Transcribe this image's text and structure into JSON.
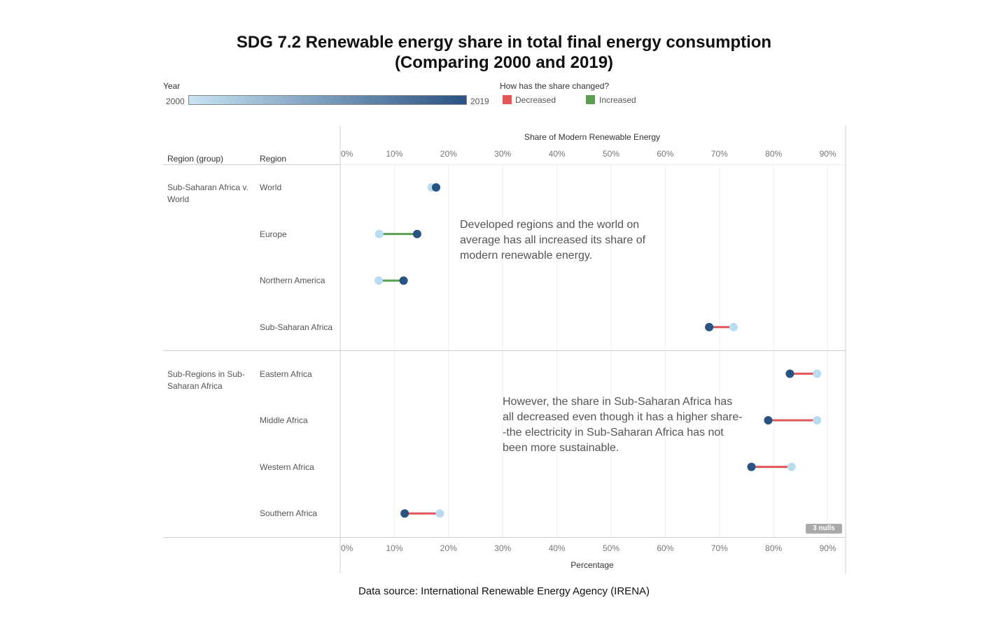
{
  "title_line1": "SDG 7.2 Renewable energy share in total final energy consumption",
  "title_line2": "(Comparing 2000 and 2019)",
  "legend": {
    "year_title": "Year",
    "year_start": "2000",
    "year_end": "2019",
    "change_title": "How has the share changed?",
    "decreased": "Decreased",
    "increased": "Increased",
    "colors": {
      "decreased": "#e15759",
      "increased": "#59a14f",
      "year_2000": "#b9dcf0",
      "year_2019": "#2a5282"
    }
  },
  "headers": {
    "group": "Region (group)",
    "region": "Region"
  },
  "groups": [
    "Sub-Saharan Africa v. World",
    "Sub-Regions in Sub-Saharan Africa"
  ],
  "annotations": [
    "Developed regions and the world on average has all increased its share of modern renewable energy.",
    "However, the share in Sub-Saharan Africa has all decreased even though it has a higher share--the electricity in Sub-Saharan Africa has not been more sustainable."
  ],
  "nulls_badge": "3 nulls",
  "footer": "Data source: International Renewable Energy Agency (IRENA)",
  "chart_data": {
    "type": "dumbbell",
    "x_axis_top_title": "Share of Modern Renewable Energy",
    "x_axis_bottom_title": "Percentage",
    "xlim": [
      0,
      93
    ],
    "ticks": [
      "0%",
      "10%",
      "20%",
      "30%",
      "40%",
      "50%",
      "60%",
      "70%",
      "80%",
      "90%"
    ],
    "series_names": [
      "2000",
      "2019"
    ],
    "rows": [
      {
        "group": 0,
        "region": "World",
        "v2000": 16.9,
        "v2019": 17.7,
        "change": "increased"
      },
      {
        "group": 0,
        "region": "Europe",
        "v2000": 7.2,
        "v2019": 14.2,
        "change": "increased"
      },
      {
        "group": 0,
        "region": "Northern America",
        "v2000": 7.1,
        "v2019": 11.7,
        "change": "increased"
      },
      {
        "group": 0,
        "region": "Sub-Saharan Africa",
        "v2000": 72.6,
        "v2019": 68.1,
        "change": "decreased"
      },
      {
        "group": 1,
        "region": "Eastern Africa",
        "v2000": 88.0,
        "v2019": 83.0,
        "change": "decreased"
      },
      {
        "group": 1,
        "region": "Middle Africa",
        "v2000": 88.0,
        "v2019": 79.0,
        "change": "decreased"
      },
      {
        "group": 1,
        "region": "Western Africa",
        "v2000": 83.3,
        "v2019": 75.9,
        "change": "decreased"
      },
      {
        "group": 1,
        "region": "Southern Africa",
        "v2000": 18.4,
        "v2019": 11.9,
        "change": "decreased"
      }
    ]
  }
}
